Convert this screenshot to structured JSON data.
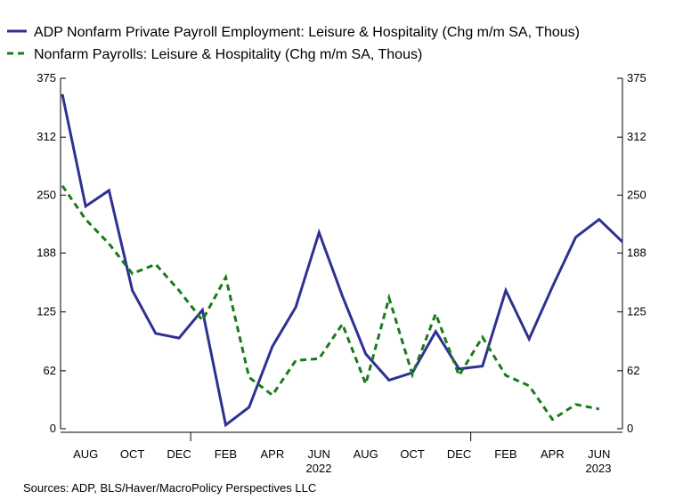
{
  "chart_data": {
    "type": "line",
    "x": [
      "2021-07",
      "2021-08",
      "2021-09",
      "2021-10",
      "2021-11",
      "2021-12",
      "2022-01",
      "2022-02",
      "2022-03",
      "2022-04",
      "2022-05",
      "2022-06",
      "2022-07",
      "2022-08",
      "2022-09",
      "2022-10",
      "2022-11",
      "2022-12",
      "2023-01",
      "2023-02",
      "2023-03",
      "2023-04",
      "2023-05",
      "2023-06",
      "2023-07"
    ],
    "series": [
      {
        "name": "ADP Nonfarm Private Payroll Employment: Leisure & Hospitality  (Chg m/m  SA, Thous)",
        "color": "#2e3192",
        "style": "solid",
        "values": [
          358,
          238,
          255,
          148,
          102,
          97,
          127,
          4,
          23,
          88,
          130,
          210,
          142,
          80,
          52,
          60,
          104,
          64,
          67,
          148,
          96,
          152,
          205,
          224,
          200
        ]
      },
      {
        "name": "Nonfarm Payrolls: Leisure & Hospitality (Chg m/m  SA, Thous)",
        "color": "#1a7a1a",
        "style": "dashed",
        "values": [
          260,
          224,
          198,
          166,
          176,
          148,
          116,
          162,
          55,
          36,
          73,
          75,
          112,
          48,
          140,
          58,
          123,
          57,
          98,
          57,
          46,
          10,
          26,
          21,
          null
        ]
      }
    ],
    "y_ticks": [
      "375",
      "312",
      "250",
      "188",
      "125",
      "62",
      "0"
    ],
    "ylim": [
      0,
      375
    ],
    "x_tick_labels": [
      "AUG",
      "OCT",
      "DEC",
      "FEB",
      "APR",
      "JUN",
      "AUG",
      "OCT",
      "DEC",
      "FEB",
      "APR",
      "JUN"
    ],
    "year_labels": [
      "2022",
      "2023"
    ],
    "legend": "top-left",
    "grid": false,
    "dual_axis": true
  },
  "source": "Sources:  ADP, BLS/Haver/MacroPolicy Perspectives LLC"
}
